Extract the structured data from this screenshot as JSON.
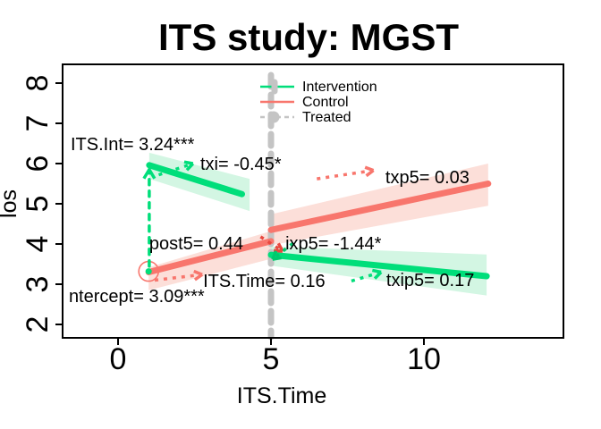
{
  "title": "ITS study: MGST",
  "axes": {
    "x": {
      "label": "ITS.Time",
      "ticks": [
        "0",
        "5",
        "10"
      ],
      "tick_values": [
        0,
        5,
        10
      ]
    },
    "y": {
      "label": "los",
      "ticks": [
        "2",
        "3",
        "4",
        "5",
        "6",
        "7",
        "8"
      ],
      "tick_values": [
        2,
        3,
        4,
        5,
        6,
        7,
        8
      ]
    }
  },
  "legend": {
    "items": [
      {
        "label": "Intervention",
        "type": "solid",
        "color": "#00de7a",
        "point": true
      },
      {
        "label": "Control",
        "type": "solid",
        "color": "#f8766d",
        "point": false
      },
      {
        "label": "Treated",
        "type": "dashed",
        "color": "#c4c4c4",
        "point": true
      }
    ]
  },
  "colors": {
    "intervention_line": "#00de7a",
    "intervention_band": "#d3f6e3",
    "control_line": "#f8766d",
    "control_band": "#fcdfd9",
    "treated_line": "#c4c4c4",
    "axis": "#000000",
    "background": "#ffffff"
  },
  "chart_data": {
    "type": "line",
    "title": "ITS study: MGST",
    "xlabel": "ITS.Time",
    "ylabel": "los",
    "xlim": [
      -1.8,
      14.6
    ],
    "ylim": [
      1.7,
      8.5
    ],
    "grid": false,
    "legend_position": "top-center",
    "treatment_time": 5,
    "series": [
      {
        "name": "intervention-pre",
        "color": "#00de7a",
        "band_color": "#d3f6e3",
        "width": 7,
        "points": [
          [
            1.02,
            5.96
          ],
          [
            4.05,
            5.24
          ]
        ],
        "band": [
          [
            1.02,
            6.27
          ],
          [
            4.3,
            5.62
          ],
          [
            4.3,
            4.82
          ],
          [
            1.02,
            5.62
          ]
        ]
      },
      {
        "name": "control-pre",
        "color": "#f8766d",
        "band_color": "#fcdfd9",
        "width": 7,
        "points": [
          [
            1.0,
            3.3
          ],
          [
            5.0,
            4.07
          ]
        ],
        "band": [
          [
            1.0,
            3.42
          ],
          [
            5.0,
            4.32
          ],
          [
            5.0,
            3.63
          ],
          [
            1.0,
            2.85
          ]
        ]
      },
      {
        "name": "control-post",
        "color": "#f8766d",
        "band_color": "#fcdfd9",
        "width": 7,
        "points": [
          [
            5.0,
            4.35
          ],
          [
            12.1,
            5.5
          ]
        ],
        "band": [
          [
            5.0,
            4.74
          ],
          [
            12.1,
            6.0
          ],
          [
            12.1,
            4.95
          ],
          [
            5.0,
            3.97
          ]
        ]
      },
      {
        "name": "intervention-post",
        "color": "#00de7a",
        "band_color": "#d3f6e3",
        "width": 7,
        "points": [
          [
            5.0,
            3.73
          ],
          [
            12.05,
            3.2
          ]
        ],
        "band": [
          [
            5.0,
            3.94
          ],
          [
            12.05,
            3.74
          ],
          [
            12.05,
            2.72
          ],
          [
            5.0,
            3.46
          ]
        ]
      }
    ],
    "vline": {
      "x": 5,
      "color": "#c4c4c4"
    },
    "effect_arrow": {
      "x": 1.02,
      "from": 3.45,
      "to": 5.85,
      "color": "#00de7a"
    },
    "baseline_marker": {
      "x": 1.0,
      "y": 3.32,
      "ring_color": "#f8766d",
      "dot_color": "#00de7a"
    },
    "annotations": [
      {
        "text": "ITS.Int= 3.24***",
        "x": -1.55,
        "y": 6.33
      },
      {
        "text": "txi= -0.45*",
        "x": 2.69,
        "y": 5.84
      },
      {
        "text": "txp5= 0.03",
        "x": 8.74,
        "y": 5.51
      },
      {
        "text": "post5= 0.44",
        "x": 1.02,
        "y": 3.87
      },
      {
        "text": "ixp5= -1.44*",
        "x": 5.47,
        "y": 3.87
      },
      {
        "text": "ITS.Time= 0.16",
        "x": 2.78,
        "y": 2.93
      },
      {
        "text": "txip5= 0.17",
        "x": 8.77,
        "y": 2.96
      },
      {
        "text": "ntercept= 3.09***",
        "x": -1.61,
        "y": 2.56
      }
    ],
    "arrows": [
      {
        "name": "txi-arrow",
        "color": "#00de7a",
        "from": [
          1.33,
          5.72
        ],
        "to": [
          2.45,
          6.0
        ]
      },
      {
        "name": "its-time-arrow",
        "color": "#f8766d",
        "from": [
          1.2,
          3.1
        ],
        "to": [
          2.75,
          3.24
        ]
      },
      {
        "name": "txp5-arrow",
        "color": "#f8766d",
        "from": [
          6.5,
          5.62
        ],
        "to": [
          8.35,
          5.83
        ]
      },
      {
        "name": "post5-arrow",
        "color": "#e8483f",
        "from": [
          4.66,
          4.18
        ],
        "to": [
          5.38,
          3.82
        ]
      },
      {
        "name": "ixp5-arrow",
        "color": "#00c96e",
        "from": [
          5.72,
          4.02
        ],
        "to": [
          5.05,
          3.62
        ]
      },
      {
        "name": "txip5-arrow",
        "color": "#00de7a",
        "from": [
          7.63,
          3.08
        ],
        "to": [
          8.6,
          3.3
        ]
      }
    ]
  }
}
